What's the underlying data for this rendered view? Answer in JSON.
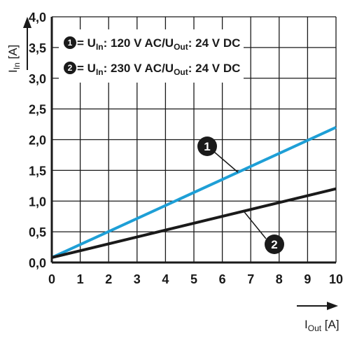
{
  "chart_data": {
    "type": "line",
    "x_unit": "I",
    "x_unit_sub": "Out",
    "x_unit_suffix": " [A]",
    "y_unit": "I",
    "y_unit_sub": "In",
    "y_unit_suffix": " [A]",
    "xlim": [
      0,
      10
    ],
    "ylim": [
      0,
      4
    ],
    "x_ticks": [
      0,
      1,
      2,
      3,
      4,
      5,
      6,
      7,
      8,
      9,
      10
    ],
    "x_tick_labels": [
      "0",
      "1",
      "2",
      "3",
      "4",
      "5",
      "6",
      "7",
      "8",
      "9",
      "10"
    ],
    "y_ticks": [
      0,
      0.5,
      1,
      1.5,
      2,
      2.5,
      3,
      3.5,
      4
    ],
    "y_tick_labels": [
      "0,0",
      "0,5",
      "1,0",
      "1,5",
      "2,0",
      "2,5",
      "3,0",
      "3,5",
      "4,0"
    ],
    "grid": true,
    "legend_position": "top-left",
    "series": [
      {
        "id": "1",
        "color": "#1e9fd6",
        "legend": {
          "pre": " = U",
          "sub1": "In",
          "mid": ": 120 V AC/U",
          "sub2": "Out",
          "post": ": 24 V DC"
        },
        "x": [
          0,
          10
        ],
        "y": [
          0.08,
          2.2
        ],
        "callout_label": "1",
        "callout_at_x": 6.55
      },
      {
        "id": "2",
        "color": "#1a1a1a",
        "legend": {
          "pre": " = U",
          "sub1": "In",
          "mid": ": 230 V AC/U",
          "sub2": "Out",
          "post": ": 24 V DC"
        },
        "x": [
          0,
          10
        ],
        "y": [
          0.08,
          1.2
        ],
        "callout_label": "2",
        "callout_at_x": 6.75
      }
    ]
  }
}
